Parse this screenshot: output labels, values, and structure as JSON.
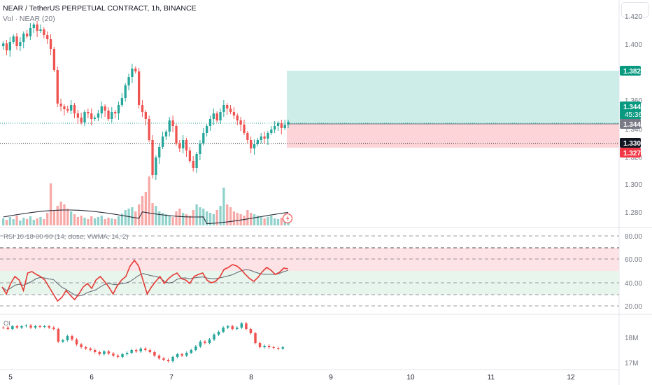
{
  "header": {
    "symbol_title": "NEAR / TetherUS PERPETUAL CONTRACT, 1h, BINANCE",
    "volume_label": "Vol · NEAR (20)"
  },
  "price_axis": {
    "labels": [
      "1.420",
      "1.400",
      "1.360",
      "1.340",
      "1.320",
      "1.300",
      "1.280"
    ]
  },
  "price_tags": {
    "target": "1.382",
    "current": "1.344",
    "countdown": "45:36",
    "last": "1.344",
    "entry": "1.330",
    "stop": "1.327"
  },
  "rsi_panel": {
    "label": "RSI 10-18-60-90 (14, close, VWMA, 14, 2)",
    "axis_labels": [
      "80.00",
      "60.00",
      "40.00",
      "20.00"
    ]
  },
  "oi_panel": {
    "label": "OI",
    "axis_labels": [
      "18M",
      "17M"
    ]
  },
  "time_axis": {
    "labels": [
      "5",
      "6",
      "7",
      "8",
      "9",
      "10",
      "11",
      "12"
    ]
  },
  "colors": {
    "up": "#26a69a",
    "down": "#ef5350",
    "target_zone": "#cdeee8",
    "stop_zone": "#fdd5d8",
    "rsi_line": "#e53935",
    "ma_line": "#2a2e39"
  },
  "icons": {
    "alert": "lightning-icon"
  }
}
